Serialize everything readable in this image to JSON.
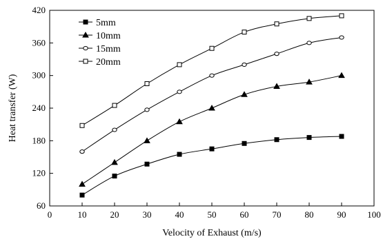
{
  "chart_data": {
    "type": "line",
    "xlabel": "Velocity of Exhaust (m/s)",
    "ylabel": "Heat transfer (W)",
    "xlim": [
      0,
      100
    ],
    "ylim": [
      60,
      420
    ],
    "xticks": [
      0,
      10,
      20,
      30,
      40,
      50,
      60,
      70,
      80,
      90,
      100
    ],
    "yticks": [
      60,
      120,
      180,
      240,
      300,
      360,
      420
    ],
    "grid": false,
    "legend_position": "top-left",
    "x": [
      10,
      20,
      30,
      40,
      50,
      60,
      70,
      80,
      90
    ],
    "series": [
      {
        "name": "5mm",
        "marker": "filled-square",
        "values": [
          80,
          115,
          137,
          155,
          165,
          175,
          182,
          186,
          188
        ]
      },
      {
        "name": "10mm",
        "marker": "filled-triangle",
        "values": [
          100,
          140,
          180,
          215,
          240,
          265,
          280,
          288,
          300
        ]
      },
      {
        "name": "15mm",
        "marker": "open-circle",
        "values": [
          160,
          200,
          237,
          270,
          300,
          320,
          340,
          360,
          370
        ]
      },
      {
        "name": "20mm",
        "marker": "open-square",
        "values": [
          208,
          245,
          285,
          320,
          350,
          380,
          395,
          405,
          410
        ]
      }
    ],
    "line_color": "#000000"
  }
}
